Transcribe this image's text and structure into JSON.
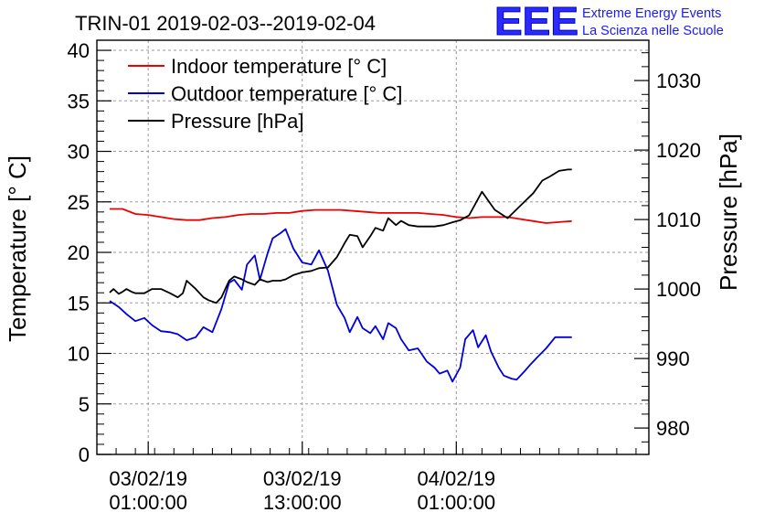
{
  "chart_data": {
    "type": "line",
    "title": "TRIN-01 2019-02-03--2019-02-04",
    "ylabel_left": "Temperature [° C]",
    "ylabel_right": "Pressure [hPa]",
    "ylim_left": [
      0,
      41
    ],
    "ylim_right": [
      976.2,
      1035.8
    ],
    "yticks_left": [
      "0",
      "5",
      "10",
      "15",
      "20",
      "25",
      "30",
      "35",
      "40"
    ],
    "yticks_right": [
      "980",
      "990",
      "1000",
      "1010",
      "1020",
      "1030"
    ],
    "xlim_hours": [
      -4,
      39
    ],
    "xticks": [
      {
        "hour": 0,
        "date": "03/02/19",
        "time": "01:00:00"
      },
      {
        "hour": 12,
        "date": "03/02/19",
        "time": "13:00:00"
      },
      {
        "hour": 24,
        "date": "04/02/19",
        "time": "01:00:00"
      }
    ],
    "grid": true,
    "legend_position": "top-left",
    "logo": {
      "text": "EEE",
      "line1": "Extreme Energy Events",
      "line2": "La Scienza nelle Scuole"
    },
    "series": [
      {
        "name": "Indoor temperature [° C]",
        "axis": "left",
        "color": "#ee0000",
        "x": [
          -3.0,
          -2.0,
          -1.0,
          0.0,
          1.0,
          2.0,
          3.0,
          4.0,
          5.0,
          6.0,
          7.0,
          8.0,
          9.0,
          10.0,
          11.0,
          12.0,
          13.0,
          14.0,
          15.0,
          16.0,
          17.0,
          18.0,
          19.0,
          20.0,
          21.0,
          22.0,
          23.0,
          24.0,
          25.0,
          26.0,
          27.0,
          28.0,
          29.0,
          30.0,
          31.0,
          32.0,
          33.0
        ],
        "values": [
          24.3,
          24.3,
          23.8,
          23.7,
          23.5,
          23.3,
          23.2,
          23.2,
          23.4,
          23.5,
          23.7,
          23.8,
          23.8,
          23.9,
          23.9,
          24.1,
          24.2,
          24.2,
          24.2,
          24.1,
          24.0,
          23.9,
          23.9,
          23.9,
          23.9,
          23.8,
          23.7,
          23.5,
          23.4,
          23.5,
          23.5,
          23.5,
          23.3,
          23.1,
          22.9,
          23.0,
          23.1
        ]
      },
      {
        "name": "Outdoor temperature [° C]",
        "axis": "left",
        "color": "#0000dd",
        "x": [
          -3.0,
          -2.3,
          -1.7,
          -1.0,
          -0.3,
          0.3,
          1.0,
          1.7,
          2.3,
          3.0,
          3.7,
          4.3,
          5.0,
          5.7,
          6.3,
          6.7,
          7.3,
          7.7,
          8.3,
          8.7,
          9.3,
          9.7,
          10.3,
          10.7,
          11.3,
          12.0,
          12.7,
          13.3,
          14.0,
          14.7,
          15.3,
          15.7,
          16.3,
          16.7,
          17.3,
          17.7,
          18.3,
          18.7,
          19.3,
          19.7,
          20.3,
          21.0,
          21.7,
          22.3,
          22.7,
          23.3,
          23.7,
          24.3,
          24.7,
          25.3,
          25.7,
          26.3,
          26.7,
          27.3,
          27.7,
          28.3,
          28.7,
          29.3,
          29.7,
          30.3,
          31.0,
          31.7,
          32.3,
          33.0
        ],
        "values": [
          15.2,
          14.6,
          13.9,
          13.2,
          13.5,
          12.8,
          12.2,
          12.1,
          11.9,
          11.3,
          11.6,
          12.6,
          12.1,
          14.4,
          17.0,
          17.3,
          16.3,
          18.8,
          19.7,
          17.3,
          19.9,
          21.4,
          21.9,
          22.3,
          20.4,
          19.0,
          18.8,
          20.2,
          18.2,
          14.8,
          13.5,
          12.1,
          13.6,
          12.5,
          12.0,
          12.7,
          11.4,
          13.0,
          12.5,
          11.4,
          10.3,
          10.5,
          9.2,
          8.6,
          8.0,
          8.3,
          7.2,
          8.6,
          11.4,
          12.3,
          10.6,
          11.8,
          10.2,
          8.6,
          7.8,
          7.5,
          7.4,
          8.2,
          8.8,
          9.6,
          10.5,
          11.6,
          11.6,
          11.6
        ]
      },
      {
        "name": "Pressure [hPa]",
        "axis": "right",
        "color": "#000000",
        "x": [
          -3.0,
          -2.7,
          -2.3,
          -2.0,
          -1.7,
          -1.3,
          -1.0,
          -0.3,
          0.3,
          1.0,
          1.7,
          2.3,
          2.7,
          3.0,
          3.7,
          4.3,
          4.7,
          5.3,
          5.7,
          6.3,
          6.7,
          7.3,
          7.7,
          8.3,
          8.7,
          9.3,
          9.7,
          10.3,
          10.7,
          11.3,
          12.0,
          12.7,
          13.3,
          14.0,
          14.7,
          15.3,
          15.7,
          16.3,
          16.7,
          17.3,
          17.7,
          18.3,
          18.7,
          19.3,
          19.7,
          20.3,
          21.0,
          21.7,
          22.3,
          23.0,
          23.7,
          24.3,
          25.0,
          26.0,
          27.0,
          28.0,
          29.0,
          30.0,
          30.7,
          31.3,
          32.0,
          32.7,
          33.0
        ],
        "values": [
          999.5,
          1000.0,
          999.3,
          999.6,
          1000.0,
          999.6,
          999.4,
          999.4,
          1000.0,
          1000.0,
          999.4,
          998.8,
          999.4,
          1001.2,
          1000.0,
          998.8,
          998.4,
          998.0,
          998.8,
          1001.2,
          1001.8,
          1001.4,
          1001.0,
          1000.6,
          1001.4,
          1001.0,
          1001.2,
          1001.2,
          1001.4,
          1002.0,
          1002.4,
          1002.6,
          1003.0,
          1003.1,
          1004.6,
          1006.6,
          1007.8,
          1007.6,
          1006.0,
          1007.6,
          1008.8,
          1008.4,
          1010.2,
          1009.2,
          1009.8,
          1009.2,
          1009.0,
          1009.0,
          1009.0,
          1009.2,
          1009.6,
          1009.9,
          1010.6,
          1014.0,
          1011.4,
          1010.2,
          1012.0,
          1013.8,
          1015.6,
          1016.2,
          1017.0,
          1017.2,
          1017.2
        ]
      }
    ]
  }
}
